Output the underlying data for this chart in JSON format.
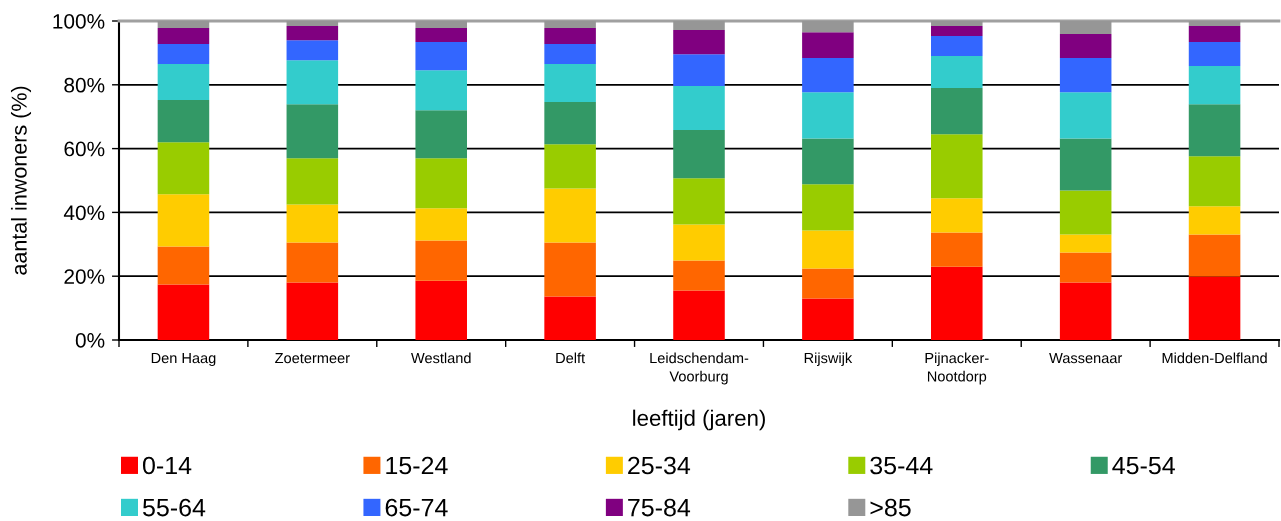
{
  "chart_data": {
    "type": "bar",
    "stacked": true,
    "categories": [
      "Den Haag",
      "Zoetermeer",
      "Westland",
      "Delft",
      "Leidschendam-\nVoorburg",
      "Rijswijk",
      "Pijnacker-\nNootdorp",
      "Wassenaar",
      "Midden-Delfland"
    ],
    "xlabel": "leeftijd (jaren)",
    "ylabel": "aantal inwoners (%)",
    "ylim": [
      0,
      100
    ],
    "yticks": [
      {
        "value": 0,
        "label": "0%"
      },
      {
        "value": 20,
        "label": "20%"
      },
      {
        "value": 40,
        "label": "40%"
      },
      {
        "value": 60,
        "label": "60%"
      },
      {
        "value": 80,
        "label": "80%"
      },
      {
        "value": 100,
        "label": "100%"
      }
    ],
    "grid": "y",
    "legend": "bottom",
    "series": [
      {
        "name": "0-14",
        "color": "#ff0000",
        "values": [
          17.4,
          18.0,
          18.6,
          13.6,
          15.5,
          13.0,
          23.0,
          18.0,
          19.9
        ]
      },
      {
        "name": "15-24",
        "color": "#ff6600",
        "values": [
          11.9,
          12.6,
          12.6,
          17.0,
          9.4,
          9.4,
          10.7,
          9.4,
          13.2
        ]
      },
      {
        "name": "25-34",
        "color": "#ffcc00",
        "values": [
          16.4,
          11.9,
          10.1,
          16.9,
          11.3,
          11.9,
          10.7,
          5.7,
          8.8
        ]
      },
      {
        "name": "35-44",
        "color": "#99cc00",
        "values": [
          16.3,
          14.5,
          15.7,
          13.9,
          14.5,
          14.5,
          20.1,
          13.8,
          15.7
        ]
      },
      {
        "name": "45-54",
        "color": "#339966",
        "values": [
          13.2,
          16.9,
          15.0,
          13.2,
          15.1,
          14.4,
          14.5,
          16.3,
          16.3
        ]
      },
      {
        "name": "55-64",
        "color": "#33cccc",
        "values": [
          11.3,
          13.8,
          12.6,
          11.9,
          13.8,
          14.5,
          10.0,
          14.5,
          12.0
        ]
      },
      {
        "name": "65-74",
        "color": "#3366ff",
        "values": [
          6.3,
          6.3,
          8.8,
          6.3,
          10.0,
          10.7,
          6.3,
          10.7,
          7.5
        ]
      },
      {
        "name": "75-84",
        "color": "#800080",
        "values": [
          5.0,
          4.4,
          4.4,
          5.0,
          7.6,
          8.1,
          3.1,
          7.5,
          5.0
        ]
      },
      {
        "name": ">85",
        "color": "#969696",
        "values": [
          2.2,
          1.6,
          2.2,
          2.2,
          2.8,
          3.5,
          1.6,
          4.1,
          1.6
        ]
      }
    ]
  }
}
